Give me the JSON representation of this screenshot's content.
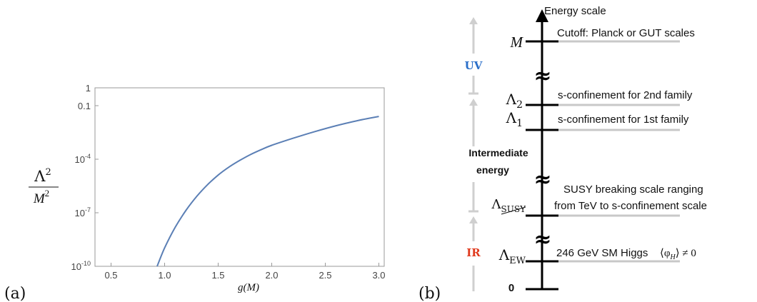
{
  "chart_data": [
    {
      "type": "line",
      "panel_label": "(a)",
      "xlabel": "g(M)",
      "ylabel_numerator": "Λ",
      "ylabel_numerator_exp": "2",
      "ylabel_denominator": "M",
      "ylabel_denominator_exp": "2",
      "x_scale": "linear",
      "y_scale": "log",
      "xlim": [
        0.35,
        3.05
      ],
      "ylim": [
        1e-10,
        1
      ],
      "x_ticks": [
        0.5,
        1.0,
        1.5,
        2.0,
        2.5,
        3.0
      ],
      "x_tick_labels": [
        "0.5",
        "1.0",
        "1.5",
        "2.0",
        "2.5",
        "3.0"
      ],
      "y_ticks": [
        1e-10,
        1e-07,
        0.0001,
        0.1,
        1
      ],
      "y_tick_labels": [
        {
          "base": "10",
          "exp": "-10"
        },
        {
          "base": "10",
          "exp": "-7"
        },
        {
          "base": "10",
          "exp": "-4"
        },
        {
          "base": "0.1",
          "exp": ""
        },
        {
          "base": "1",
          "exp": ""
        }
      ],
      "grid": false,
      "line_color": "#5b7fb5",
      "series": [
        {
          "x": [
            0.93,
            1.0,
            1.1,
            1.2,
            1.3,
            1.4,
            1.5,
            1.6,
            1.7,
            1.8,
            1.9,
            2.0,
            2.2,
            2.4,
            2.6,
            2.8,
            3.0
          ],
          "y": [
            1e-10,
            1.08e-09,
            1.58e-08,
            1.38e-07,
            8.3e-07,
            3.7e-06,
            1.29e-05,
            3.6e-05,
            8.5e-05,
            0.00018,
            0.00034,
            0.0006,
            0.0015,
            0.0035,
            0.0075,
            0.0145,
            0.025
          ]
        }
      ]
    },
    {
      "type": "diagram",
      "panel_label": "(b)",
      "axis_title": "Energy scale",
      "levels": [
        {
          "symbol": "M",
          "description": "Cutoff: Planck or GUT scales"
        },
        {
          "symbol": "Λ",
          "sub": "2",
          "description": "s-confinement for 2nd family"
        },
        {
          "symbol": "Λ",
          "sub": "1",
          "description": "s-confinement for 1st family"
        },
        {
          "symbol": "Λ",
          "sub": "SUSY",
          "description_lines": [
            "SUSY breaking scale ranging",
            "from TeV to s-confinement scale"
          ]
        },
        {
          "symbol": "Λ",
          "sub": "EW",
          "description": "246 GeV  SM Higgs",
          "vev": "⟨φ",
          "vev_sub": "H",
          "vev_rest": "⟩ ≠ 0"
        },
        {
          "symbol": "0",
          "description": ""
        }
      ],
      "regions": [
        {
          "label": "UV",
          "color": "#2a6fc9"
        },
        {
          "label_lines": [
            "Intermediate",
            "energy"
          ],
          "color": "#111111"
        },
        {
          "label": "IR",
          "color": "#e03a1e"
        }
      ],
      "break_symbol": "≈"
    }
  ]
}
